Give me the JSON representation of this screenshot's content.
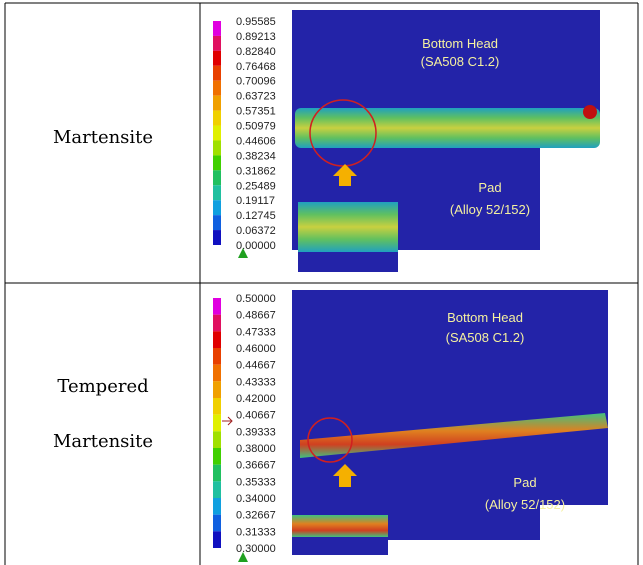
{
  "table": {
    "rows": [
      {
        "label": [
          "Martensite"
        ],
        "legend": [
          "0.95585",
          "0.89213",
          "0.82840",
          "0.76468",
          "0.70096",
          "0.63723",
          "0.57351",
          "0.50979",
          "0.44606",
          "0.38234",
          "0.31862",
          "0.25489",
          "0.19117",
          "0.12745",
          "0.06372",
          "0.00000"
        ],
        "annotations": {
          "upper": "Bottom Head",
          "upper_material": "(SA508 C1.2)",
          "lower": "Pad",
          "lower_material": "(Alloy 52/152)"
        }
      },
      {
        "label": [
          "Tempered",
          "Martensite"
        ],
        "legend": [
          "0.50000",
          "0.48667",
          "0.47333",
          "0.46000",
          "0.44667",
          "0.43333",
          "0.42000",
          "0.40667",
          "0.39333",
          "0.38000",
          "0.36667",
          "0.35333",
          "0.34000",
          "0.32667",
          "0.31333",
          "0.30000"
        ],
        "annotations": {
          "upper": "Bottom Head",
          "upper_material": "(SA508 C1.2)",
          "lower": "Pad",
          "lower_material": "(Alloy 52/152)"
        }
      }
    ]
  }
}
